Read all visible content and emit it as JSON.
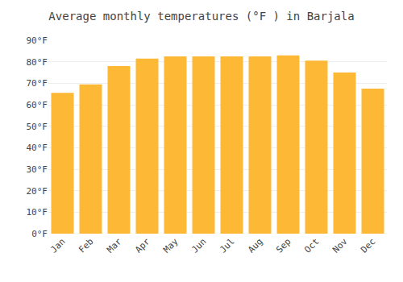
{
  "chart_data": {
    "type": "bar",
    "title": "Average monthly temperatures (°F ) in Barjala",
    "categories": [
      "Jan",
      "Feb",
      "Mar",
      "Apr",
      "May",
      "Jun",
      "Jul",
      "Aug",
      "Sep",
      "Oct",
      "Nov",
      "Dec"
    ],
    "values": [
      65.5,
      69.5,
      78,
      81.5,
      82.5,
      82.5,
      82.5,
      82.5,
      83,
      80.5,
      75,
      67.5
    ],
    "color": "#FDB935",
    "ylim": [
      0,
      90
    ],
    "yticks": [
      {
        "value": 0,
        "label": "0°F"
      },
      {
        "value": 10,
        "label": "10°F"
      },
      {
        "value": 20,
        "label": "20°F"
      },
      {
        "value": 30,
        "label": "30°F"
      },
      {
        "value": 40,
        "label": "40°F"
      },
      {
        "value": 50,
        "label": "50°F"
      },
      {
        "value": 60,
        "label": "60°F"
      },
      {
        "value": 70,
        "label": "70°F"
      },
      {
        "value": 80,
        "label": "80°F"
      },
      {
        "value": 90,
        "label": "90°F"
      }
    ],
    "grid": true
  }
}
